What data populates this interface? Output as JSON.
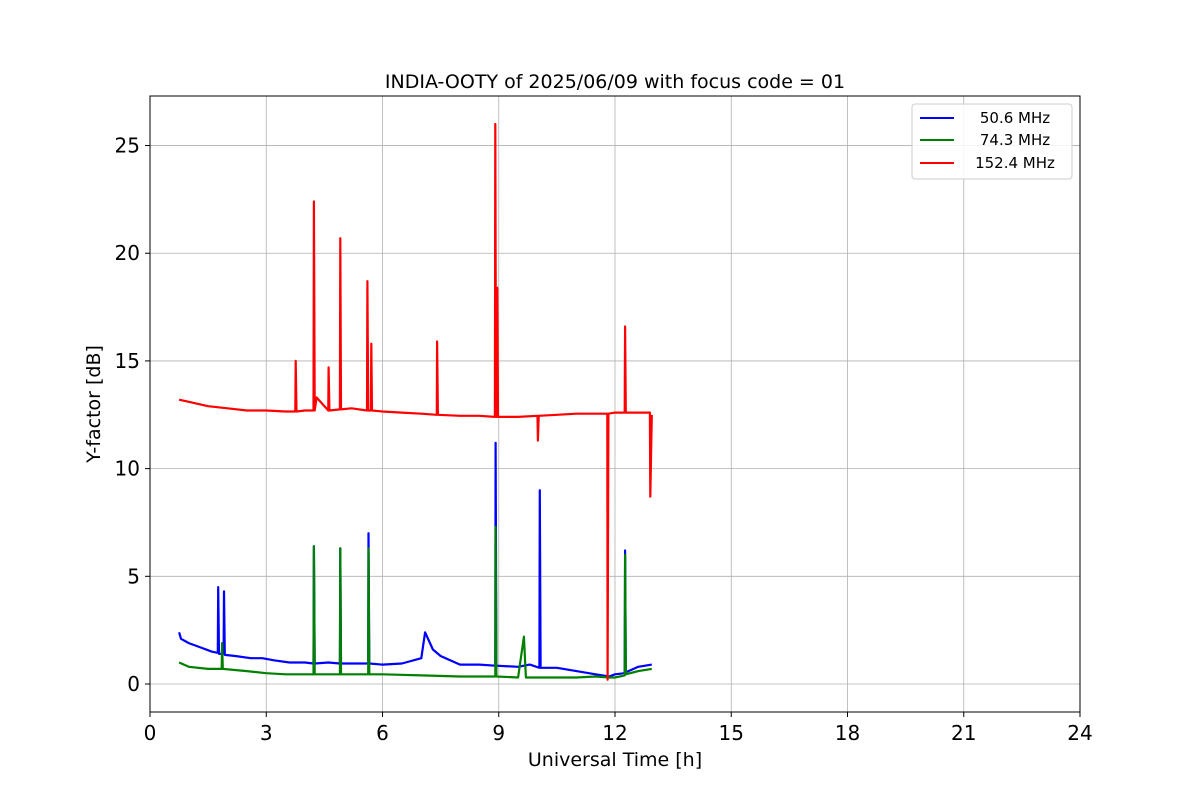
{
  "chart_data": {
    "type": "line",
    "title": "INDIA-OOTY of 2025/06/09 with focus code = 01",
    "xlabel": "Universal Time [h]",
    "ylabel": "Y-factor [dB]",
    "xlim": [
      0,
      24
    ],
    "ylim": [
      -1.3,
      27.3
    ],
    "xticks": [
      0,
      3,
      6,
      9,
      12,
      15,
      18,
      21,
      24
    ],
    "yticks": [
      0,
      5,
      10,
      15,
      20,
      25
    ],
    "grid": true,
    "legend_position": "top-right",
    "series": [
      {
        "name": "50.6 MHz",
        "color": "#0000ff",
        "x": [
          0.75,
          0.8,
          1.0,
          1.3,
          1.6,
          1.75,
          1.76,
          1.78,
          1.9,
          1.91,
          1.93,
          2.2,
          2.6,
          2.9,
          3.2,
          3.6,
          4.0,
          4.22,
          4.23,
          4.25,
          4.6,
          4.9,
          4.91,
          4.93,
          5.3,
          5.63,
          5.64,
          5.66,
          6.0,
          6.5,
          7.0,
          7.1,
          7.3,
          7.5,
          8.0,
          8.5,
          8.91,
          8.92,
          8.94,
          9.5,
          9.8,
          10.05,
          10.06,
          10.08,
          10.5,
          11.0,
          11.5,
          11.85,
          12.0,
          12.25,
          12.26,
          12.28,
          12.6,
          12.95
        ],
        "y": [
          2.4,
          2.1,
          1.9,
          1.7,
          1.5,
          1.45,
          4.5,
          1.4,
          1.4,
          4.3,
          1.35,
          1.3,
          1.2,
          1.2,
          1.1,
          1.0,
          1.0,
          0.95,
          6.4,
          0.95,
          1.0,
          0.95,
          6.3,
          0.95,
          0.95,
          0.95,
          7.0,
          0.95,
          0.9,
          0.95,
          1.2,
          2.4,
          1.6,
          1.3,
          0.9,
          0.9,
          0.85,
          11.2,
          0.85,
          0.8,
          0.9,
          0.75,
          9.0,
          0.75,
          0.75,
          0.6,
          0.45,
          0.35,
          0.45,
          0.5,
          6.2,
          0.55,
          0.8,
          0.9
        ]
      },
      {
        "name": "74.3 MHz",
        "color": "#008000",
        "x": [
          0.75,
          1.0,
          1.5,
          1.85,
          1.86,
          1.88,
          2.5,
          3.0,
          3.5,
          4.0,
          4.22,
          4.23,
          4.25,
          4.6,
          4.9,
          4.91,
          4.93,
          5.3,
          5.63,
          5.64,
          5.66,
          6.0,
          7.0,
          8.0,
          8.5,
          8.91,
          8.92,
          8.94,
          9.5,
          9.65,
          9.7,
          10.0,
          10.5,
          11.0,
          11.5,
          11.85,
          12.0,
          12.25,
          12.26,
          12.28,
          12.6,
          12.95
        ],
        "y": [
          1.0,
          0.8,
          0.7,
          0.7,
          1.9,
          0.7,
          0.6,
          0.5,
          0.45,
          0.45,
          0.45,
          6.4,
          0.45,
          0.45,
          0.45,
          6.3,
          0.45,
          0.45,
          0.45,
          6.3,
          0.45,
          0.45,
          0.4,
          0.35,
          0.35,
          0.35,
          7.3,
          0.35,
          0.3,
          2.2,
          0.3,
          0.3,
          0.3,
          0.3,
          0.35,
          0.3,
          0.3,
          0.4,
          6.0,
          0.45,
          0.6,
          0.7
        ]
      },
      {
        "name": "152.4 MHz",
        "color": "#ff0000",
        "x": [
          0.75,
          1.0,
          1.5,
          2.0,
          2.5,
          3.0,
          3.5,
          3.75,
          3.76,
          3.78,
          4.0,
          4.22,
          4.23,
          4.25,
          4.3,
          4.6,
          4.61,
          4.63,
          4.9,
          4.91,
          4.93,
          5.2,
          5.6,
          5.61,
          5.63,
          5.7,
          5.71,
          5.73,
          6.0,
          6.5,
          7.0,
          7.4,
          7.41,
          7.43,
          8.0,
          8.5,
          8.9,
          8.91,
          8.93,
          8.95,
          8.96,
          8.98,
          9.5,
          10.0,
          10.01,
          10.03,
          10.5,
          11.0,
          11.5,
          11.8,
          11.81,
          11.83,
          12.0,
          12.25,
          12.26,
          12.28,
          12.6,
          12.9,
          12.91,
          12.95
        ],
        "y": [
          13.2,
          13.1,
          12.9,
          12.8,
          12.7,
          12.7,
          12.65,
          12.65,
          15.0,
          12.65,
          12.7,
          12.7,
          22.4,
          12.7,
          13.3,
          12.7,
          14.7,
          12.7,
          12.75,
          20.7,
          12.75,
          12.8,
          12.7,
          18.7,
          12.7,
          12.7,
          15.8,
          12.7,
          12.65,
          12.6,
          12.55,
          12.5,
          15.9,
          12.5,
          12.45,
          12.45,
          12.4,
          26.0,
          12.4,
          12.4,
          18.4,
          12.4,
          12.4,
          12.45,
          11.3,
          12.45,
          12.5,
          12.55,
          12.55,
          12.55,
          0.2,
          12.55,
          12.6,
          12.6,
          16.6,
          12.6,
          12.6,
          12.6,
          8.7,
          12.5
        ]
      }
    ]
  }
}
